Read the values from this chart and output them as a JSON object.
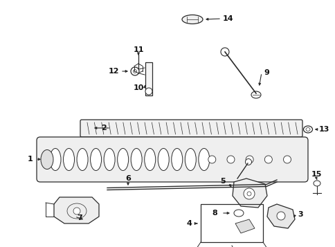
{
  "bg_color": "#ffffff",
  "line_color": "#2a2a2a",
  "text_color": "#111111",
  "fig_width": 4.85,
  "fig_height": 3.57,
  "dpi": 100
}
